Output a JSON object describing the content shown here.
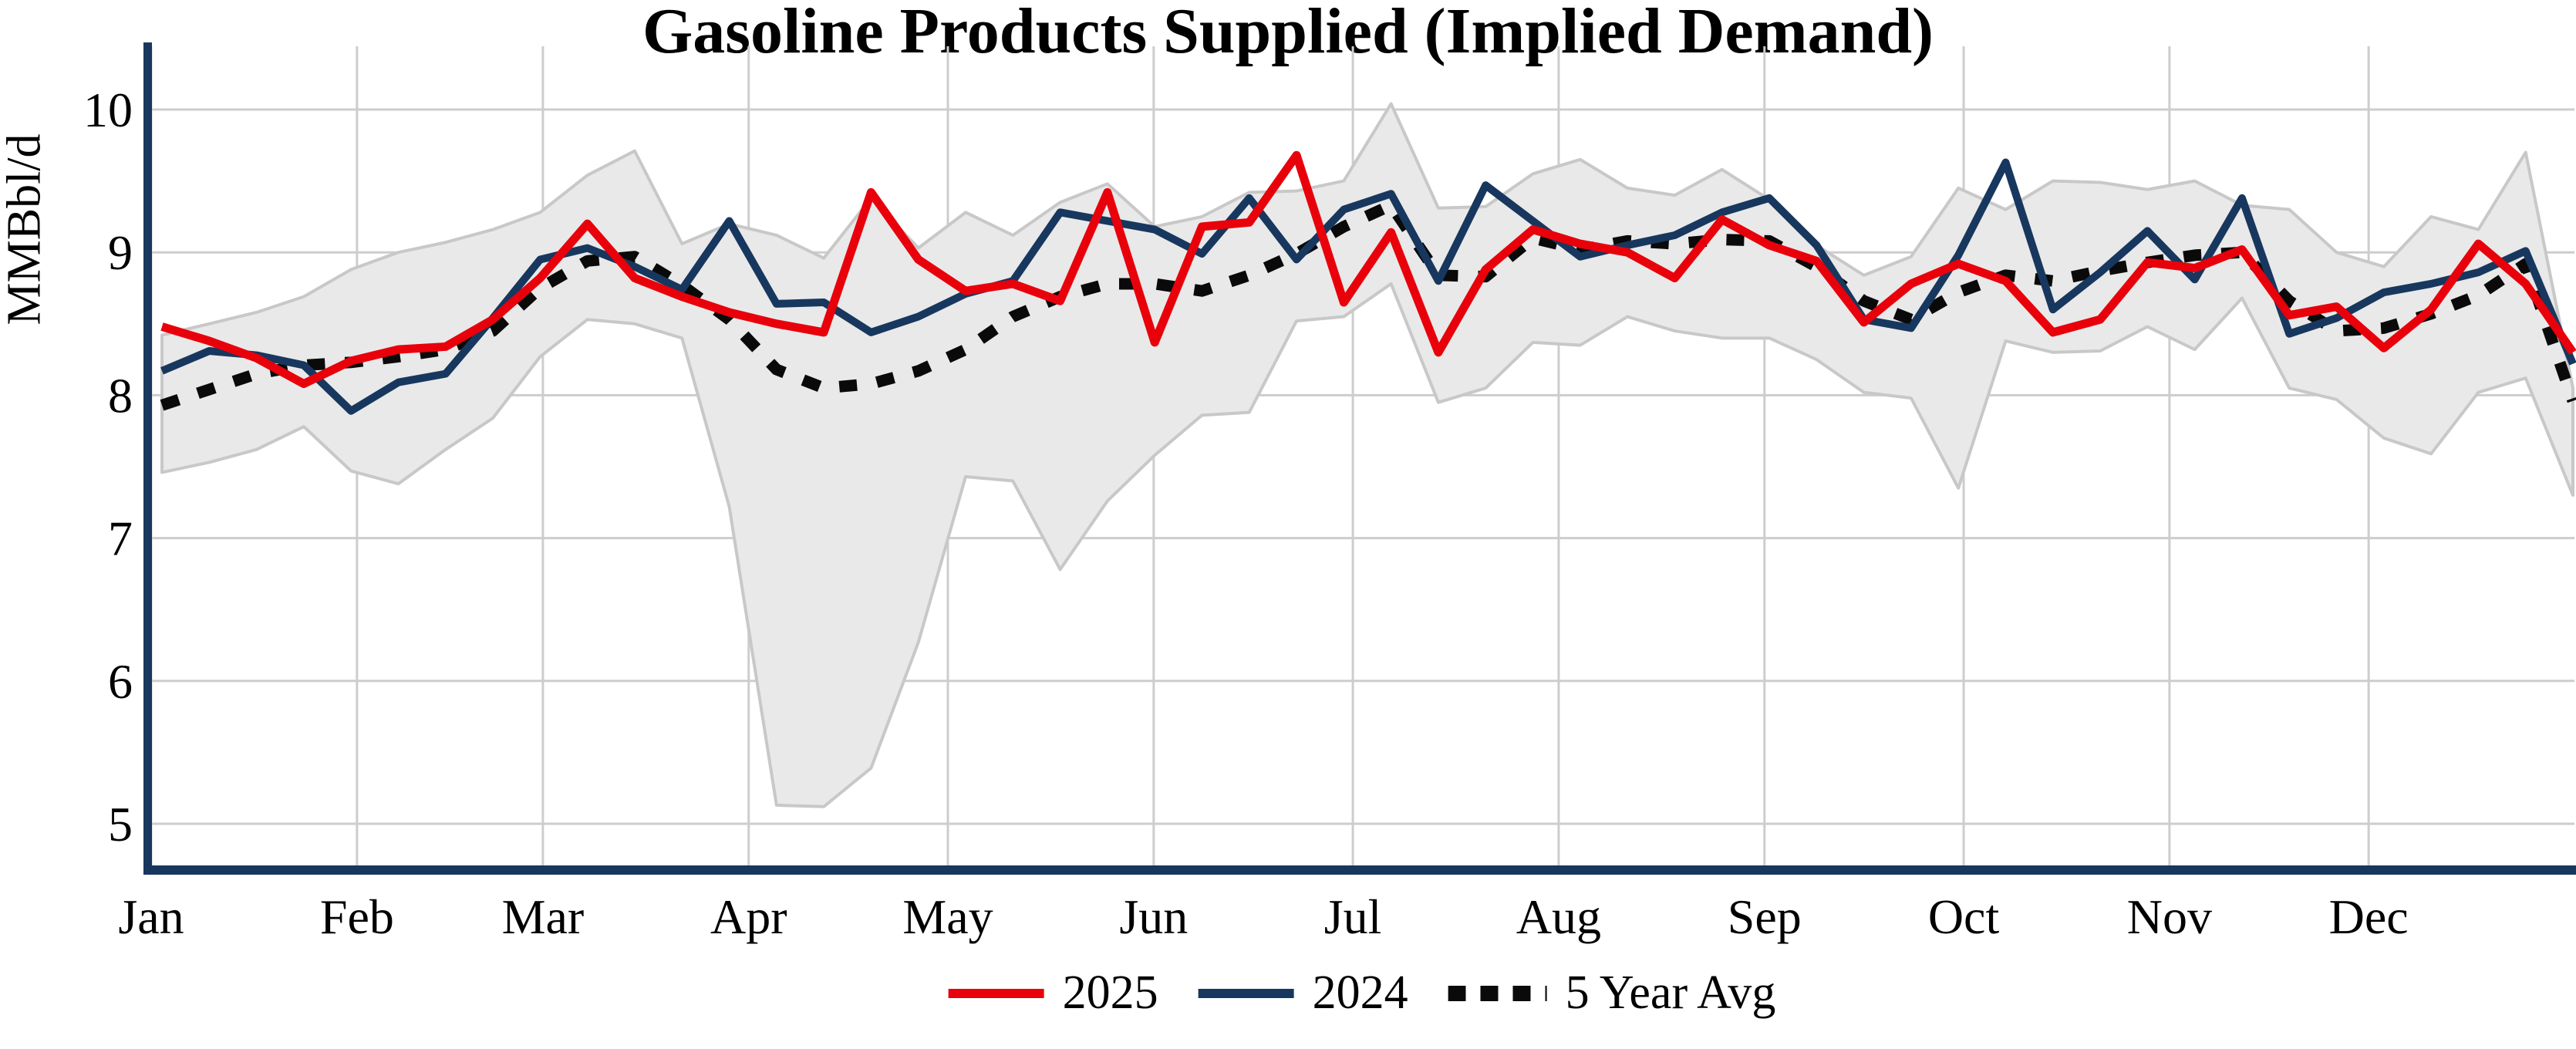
{
  "title": "Gasoline Products Supplied (Implied Demand)",
  "y_axis": {
    "label": "MMBbl/d",
    "tick_labels": [
      "10",
      "9",
      "8",
      "7",
      "6",
      "5"
    ],
    "tick_values": [
      10,
      9,
      8,
      7,
      6,
      5
    ]
  },
  "x_axis": {
    "month_labels": [
      "Jan",
      "Feb",
      "Mar",
      "Apr",
      "May",
      "Jun",
      "Jul",
      "Aug",
      "Sep",
      "Oct",
      "Nov",
      "Dec"
    ]
  },
  "legend": {
    "items": [
      {
        "label": "2025",
        "style": "solid",
        "color": "#e8000b"
      },
      {
        "label": "2024",
        "style": "solid",
        "color": "#17375e"
      },
      {
        "label": "5 Year Avg",
        "style": "dotted",
        "color": "#0a0a0a"
      }
    ]
  },
  "colors": {
    "red_2025": "#e8000b",
    "navy_2024": "#17375e",
    "avg_dotted": "#0a0a0a",
    "band_fill": "#e9e9e9",
    "band_edge": "#c8c8c8",
    "gridline": "#cdcdcd",
    "axis": "#17375e"
  },
  "chart_data": {
    "type": "line",
    "title": "Gasoline Products Supplied (Implied Demand)",
    "ylabel": "MMBbl/d",
    "xlabel": "",
    "x_unit": "week_of_year",
    "n_points": 52,
    "ylim": [
      4.7,
      10.45
    ],
    "yticks": [
      5,
      6,
      7,
      8,
      9,
      10
    ],
    "grid": true,
    "legend_position": "bottom-center",
    "band": {
      "name": "5-year range",
      "upper": [
        8.42,
        8.5,
        8.58,
        8.69,
        8.88,
        9.0,
        9.07,
        9.16,
        9.28,
        9.54,
        9.71,
        9.06,
        9.2,
        9.12,
        8.96,
        9.38,
        9.03,
        9.28,
        9.12,
        9.35,
        9.48,
        9.18,
        9.25,
        9.42,
        9.43,
        9.5,
        10.04,
        9.31,
        9.32,
        9.55,
        9.65,
        9.45,
        9.4,
        9.58,
        9.37,
        9.05,
        8.84,
        8.97,
        9.45,
        9.3,
        9.5,
        9.49,
        9.44,
        9.5,
        9.33,
        9.3,
        9.0,
        8.9,
        9.25,
        9.16,
        9.7,
        8.05
      ],
      "lower": [
        7.46,
        7.53,
        7.62,
        7.78,
        7.47,
        7.38,
        7.62,
        7.84,
        8.27,
        8.53,
        8.5,
        8.4,
        7.22,
        5.13,
        5.12,
        5.39,
        6.27,
        7.43,
        7.4,
        6.78,
        7.26,
        7.58,
        7.86,
        7.88,
        8.52,
        8.55,
        8.78,
        7.95,
        8.05,
        8.37,
        8.35,
        8.55,
        8.45,
        8.4,
        8.4,
        8.25,
        8.02,
        7.98,
        7.35,
        8.38,
        8.3,
        8.31,
        8.48,
        8.32,
        8.68,
        8.05,
        7.97,
        7.7,
        7.59,
        8.02,
        8.12,
        7.3
      ]
    },
    "series": [
      {
        "name": "2025",
        "color": "#e8000b",
        "style": "solid",
        "values": [
          8.48,
          8.38,
          8.26,
          8.08,
          8.24,
          8.32,
          8.34,
          8.53,
          8.82,
          9.2,
          8.82,
          8.69,
          8.58,
          8.5,
          8.44,
          9.42,
          8.95,
          8.73,
          8.78,
          8.66,
          9.42,
          8.37,
          9.18,
          9.21,
          9.68,
          8.65,
          9.14,
          8.3,
          8.88,
          9.16,
          9.06,
          9.0,
          8.82,
          9.23,
          9.05,
          8.94,
          8.51,
          8.78,
          8.92,
          8.8,
          8.44,
          8.53,
          8.93,
          8.89,
          9.02,
          8.56,
          8.62,
          8.33,
          8.6,
          9.06,
          8.78,
          8.3
        ]
      },
      {
        "name": "2024",
        "color": "#17375e",
        "style": "solid",
        "values": [
          8.17,
          8.31,
          8.28,
          8.21,
          7.89,
          8.09,
          8.15,
          8.54,
          8.95,
          9.03,
          8.9,
          8.74,
          9.22,
          8.64,
          8.65,
          8.44,
          8.55,
          8.71,
          8.8,
          9.28,
          9.22,
          9.16,
          8.99,
          9.38,
          8.95,
          9.3,
          9.41,
          8.8,
          9.47,
          9.22,
          8.97,
          9.05,
          9.12,
          9.28,
          9.38,
          9.05,
          8.53,
          8.47,
          8.98,
          9.63,
          8.6,
          8.86,
          9.15,
          8.81,
          9.38,
          8.43,
          8.54,
          8.72,
          8.78,
          8.86,
          9.01,
          8.22
        ]
      },
      {
        "name": "5 Year Avg",
        "color": "#0a0a0a",
        "style": "dotted",
        "values": [
          7.93,
          8.04,
          8.15,
          8.21,
          8.23,
          8.27,
          8.32,
          8.45,
          8.75,
          8.94,
          8.97,
          8.77,
          8.53,
          8.18,
          8.05,
          8.08,
          8.17,
          8.32,
          8.55,
          8.69,
          8.78,
          8.78,
          8.73,
          8.84,
          8.99,
          9.18,
          9.33,
          8.84,
          8.83,
          9.1,
          9.02,
          9.08,
          9.06,
          9.09,
          9.08,
          8.9,
          8.66,
          8.53,
          8.72,
          8.84,
          8.8,
          8.87,
          8.93,
          8.98,
          9.0,
          8.66,
          8.45,
          8.47,
          8.57,
          8.7,
          8.92,
          7.96
        ]
      }
    ]
  }
}
